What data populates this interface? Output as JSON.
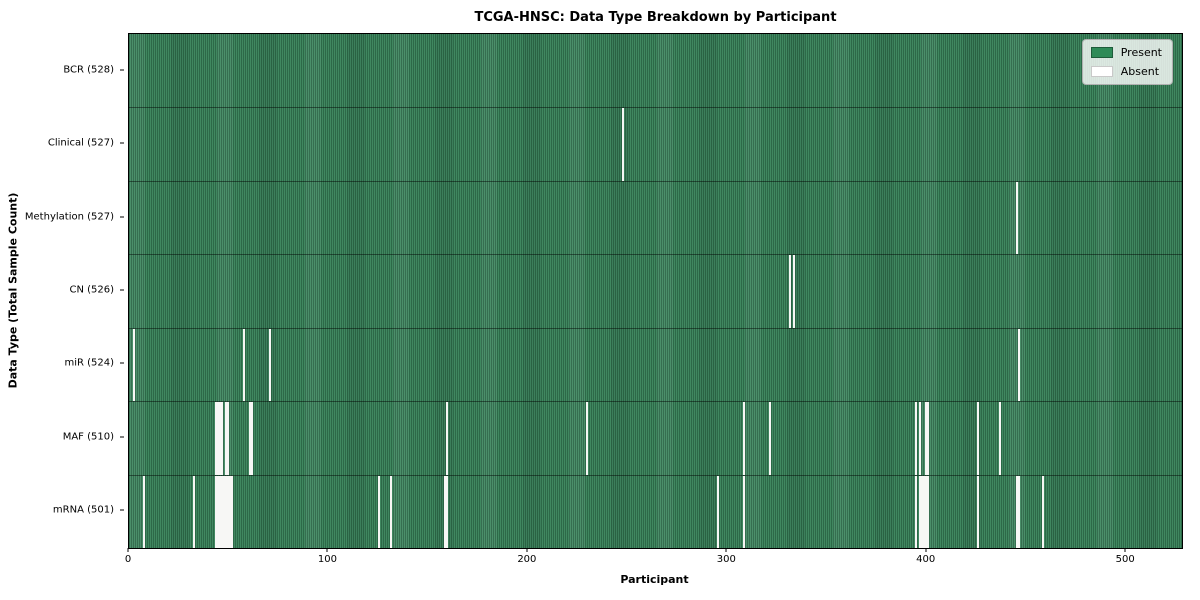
{
  "title": "TCGA-HNSC: Data Type Breakdown by Participant",
  "legend": {
    "present_label": "Present",
    "absent_label": "Absent"
  },
  "axes": {
    "xlabel": "Participant",
    "ylabel": "Data Type (Total Sample Count)",
    "x_ticks": [
      0,
      100,
      200,
      300,
      400,
      500
    ],
    "x_range": [
      0,
      528
    ]
  },
  "colors": {
    "present": "#2e8b57",
    "present_stripe_dark": "#2d6844",
    "present_stripe_light": "#3f8a5c",
    "absent": "#ffffff",
    "legend_bg": "#e8ece8",
    "row_divider": "#1c3b2a"
  },
  "chart_data": {
    "type": "heatmap",
    "title": "TCGA-HNSC: Data Type Breakdown by Participant",
    "xlabel": "Participant",
    "ylabel": "Data Type (Total Sample Count)",
    "legend": [
      "Present",
      "Absent"
    ],
    "legend_position": "upper right",
    "n_participants": 528,
    "value_encoding": {
      "present": "green",
      "absent": "white"
    },
    "rows": [
      {
        "name": "BCR",
        "label": "BCR (528)",
        "present_count": 528,
        "absent_count": 0,
        "absent_participants": []
      },
      {
        "name": "Clinical",
        "label": "Clinical (527)",
        "present_count": 527,
        "absent_count": 1,
        "absent_participants": [
          247
        ]
      },
      {
        "name": "Methylation",
        "label": "Methylation (527)",
        "present_count": 527,
        "absent_count": 1,
        "absent_participants": [
          445
        ]
      },
      {
        "name": "CN",
        "label": "CN (526)",
        "present_count": 526,
        "absent_count": 2,
        "absent_participants": [
          331,
          333
        ]
      },
      {
        "name": "miR",
        "label": "miR (524)",
        "present_count": 524,
        "absent_count": 4,
        "absent_participants": [
          2,
          57,
          70,
          446
        ]
      },
      {
        "name": "MAF",
        "label": "MAF (510)",
        "present_count": 510,
        "absent_count": 18,
        "absent_participants": [
          43,
          44,
          45,
          46,
          48,
          49,
          60,
          61,
          159,
          229,
          308,
          321,
          394,
          396,
          399,
          400,
          425,
          436
        ]
      },
      {
        "name": "mRNA",
        "label": "mRNA (501)",
        "present_count": 501,
        "absent_count": 27,
        "absent_participants": [
          7,
          32,
          43,
          44,
          45,
          46,
          47,
          48,
          49,
          50,
          51,
          125,
          131,
          158,
          159,
          295,
          308,
          394,
          396,
          397,
          398,
          399,
          400,
          425,
          445,
          446,
          458
        ]
      }
    ]
  }
}
